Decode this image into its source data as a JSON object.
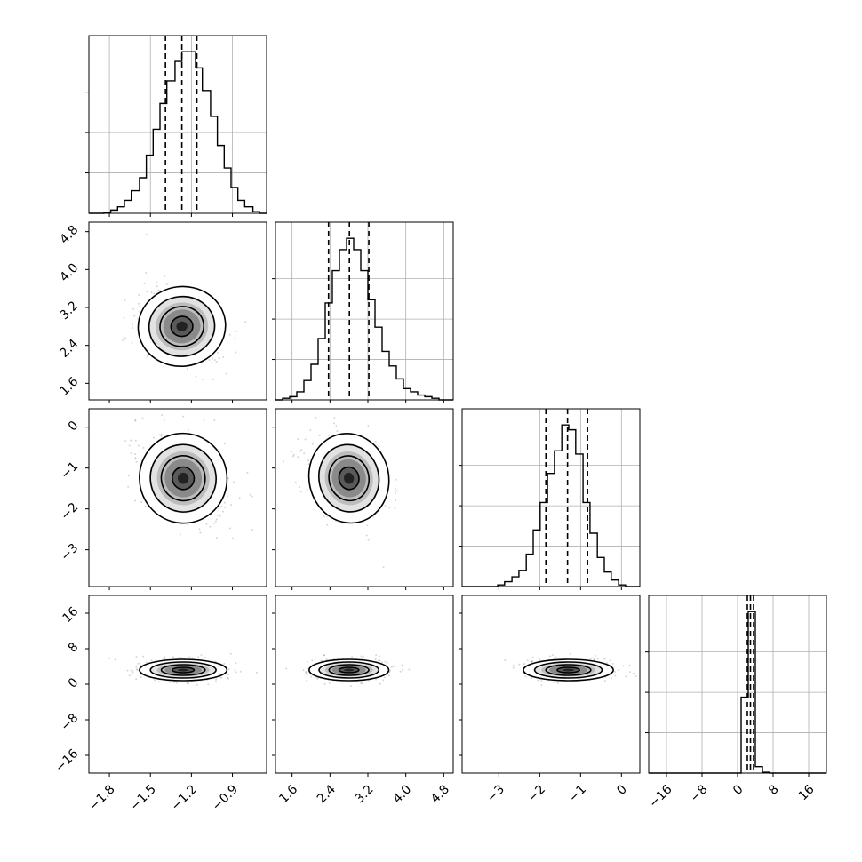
{
  "chart_data": {
    "type": "corner",
    "parameters": [
      "",
      "",
      "",
      ""
    ],
    "colors": {
      "samples": "#000000",
      "grid": "#b0b0b0",
      "frame": "#000000",
      "background": "#ffffff"
    },
    "grid": true,
    "axes": [
      {
        "range": [
          -1.95,
          -0.65
        ],
        "ticks": [
          -1.8,
          -1.5,
          -1.2,
          -0.9
        ],
        "tick_labels": [
          "−1.8",
          "−1.5",
          "−1.2",
          "−0.9"
        ]
      },
      {
        "range": [
          1.25,
          5.0
        ],
        "ticks": [
          1.6,
          2.4,
          3.2,
          4.0,
          4.8
        ],
        "tick_labels": [
          "1.6",
          "2.4",
          "3.2",
          "4.0",
          "4.8"
        ]
      },
      {
        "range": [
          -3.9,
          0.45
        ],
        "ticks": [
          -3,
          -2,
          -1,
          0
        ],
        "tick_labels": [
          "−3",
          "−2",
          "−1",
          "0"
        ]
      },
      {
        "range": [
          -20,
          20
        ],
        "ticks": [
          -16,
          -8,
          0,
          8,
          16
        ],
        "tick_labels": [
          "−16",
          "−8",
          "0",
          "8",
          "16"
        ]
      }
    ],
    "diagonal": [
      {
        "bins": [
          [
            -1.95,
            -1.89
          ],
          [
            -1.89,
            -1.84
          ],
          [
            -1.84,
            -1.79
          ],
          [
            -1.79,
            -1.74
          ],
          [
            -1.74,
            -1.69
          ],
          [
            -1.69,
            -1.64
          ],
          [
            -1.64,
            -1.58
          ],
          [
            -1.58,
            -1.53
          ],
          [
            -1.53,
            -1.48
          ],
          [
            -1.48,
            -1.43
          ],
          [
            -1.43,
            -1.38
          ],
          [
            -1.38,
            -1.32
          ],
          [
            -1.32,
            -1.27
          ],
          [
            -1.27,
            -1.22
          ],
          [
            -1.22,
            -1.17
          ],
          [
            -1.17,
            -1.12
          ],
          [
            -1.12,
            -1.06
          ],
          [
            -1.06,
            -1.01
          ],
          [
            -1.01,
            -0.96
          ],
          [
            -0.96,
            -0.91
          ],
          [
            -0.91,
            -0.86
          ],
          [
            -0.86,
            -0.81
          ],
          [
            -0.81,
            -0.75
          ],
          [
            -0.75,
            -0.7
          ],
          [
            -0.7,
            -0.65
          ]
        ],
        "counts": [
          0,
          0,
          0.5,
          2,
          4,
          8,
          14,
          22,
          36,
          52,
          68,
          82,
          94,
          100,
          100,
          90,
          76,
          60,
          42,
          28,
          16,
          8,
          4,
          1,
          0
        ],
        "quantiles": [
          -1.39,
          -1.27,
          -1.16
        ]
      },
      {
        "bins": [
          [
            1.25,
            1.4
          ],
          [
            1.4,
            1.55
          ],
          [
            1.55,
            1.7
          ],
          [
            1.7,
            1.85
          ],
          [
            1.85,
            2.0
          ],
          [
            2.0,
            2.15
          ],
          [
            2.15,
            2.3
          ],
          [
            2.3,
            2.45
          ],
          [
            2.45,
            2.6
          ],
          [
            2.6,
            2.75
          ],
          [
            2.75,
            2.9
          ],
          [
            2.9,
            3.05
          ],
          [
            3.05,
            3.2
          ],
          [
            3.2,
            3.35
          ],
          [
            3.35,
            3.5
          ],
          [
            3.5,
            3.65
          ],
          [
            3.65,
            3.8
          ],
          [
            3.8,
            3.95
          ],
          [
            3.95,
            4.1
          ],
          [
            4.1,
            4.25
          ],
          [
            4.25,
            4.4
          ],
          [
            4.4,
            4.55
          ],
          [
            4.55,
            4.7
          ],
          [
            4.7,
            4.85
          ],
          [
            4.85,
            5.0
          ]
        ],
        "counts": [
          0,
          1,
          2,
          5,
          12,
          22,
          38,
          60,
          80,
          93,
          100,
          93,
          80,
          62,
          45,
          30,
          21,
          13,
          7,
          5,
          3,
          2,
          1,
          0,
          0
        ],
        "quantiles": [
          2.37,
          2.81,
          3.22
        ]
      },
      {
        "bins": [
          [
            -3.9,
            -3.73
          ],
          [
            -3.73,
            -3.55
          ],
          [
            -3.55,
            -3.38
          ],
          [
            -3.38,
            -3.2
          ],
          [
            -3.2,
            -3.03
          ],
          [
            -3.03,
            -2.86
          ],
          [
            -2.86,
            -2.68
          ],
          [
            -2.68,
            -2.51
          ],
          [
            -2.51,
            -2.33
          ],
          [
            -2.33,
            -2.16
          ],
          [
            -2.16,
            -1.99
          ],
          [
            -1.99,
            -1.81
          ],
          [
            -1.81,
            -1.64
          ],
          [
            -1.64,
            -1.46
          ],
          [
            -1.46,
            -1.29
          ],
          [
            -1.29,
            -1.12
          ],
          [
            -1.12,
            -0.94
          ],
          [
            -0.94,
            -0.77
          ],
          [
            -0.77,
            -0.59
          ],
          [
            -0.59,
            -0.42
          ],
          [
            -0.42,
            -0.25
          ],
          [
            -0.25,
            -0.07
          ],
          [
            -0.07,
            0.1
          ],
          [
            0.1,
            0.28
          ],
          [
            0.28,
            0.45
          ]
        ],
        "counts": [
          0,
          0,
          0,
          0,
          0,
          1,
          3,
          6,
          10,
          20,
          35,
          52,
          70,
          84,
          100,
          97,
          82,
          52,
          33,
          18,
          9,
          4,
          1,
          0,
          0
        ],
        "quantiles": [
          -1.85,
          -1.32,
          -0.83
        ]
      },
      {
        "bins": [
          [
            -20,
            -18.4
          ],
          [
            -18.4,
            -16.8
          ],
          [
            -16.8,
            -15.2
          ],
          [
            -15.2,
            -13.6
          ],
          [
            -13.6,
            -12
          ],
          [
            -12,
            -10.4
          ],
          [
            -10.4,
            -8.8
          ],
          [
            -8.8,
            -7.2
          ],
          [
            -7.2,
            -5.6
          ],
          [
            -5.6,
            -4
          ],
          [
            -4,
            -2.4
          ],
          [
            -2.4,
            -0.8
          ],
          [
            -0.8,
            0.8
          ],
          [
            0.8,
            2.4
          ],
          [
            2.4,
            4
          ],
          [
            4,
            5.6
          ],
          [
            5.6,
            7.2
          ],
          [
            7.2,
            8.8
          ],
          [
            8.8,
            10.4
          ],
          [
            10.4,
            12
          ],
          [
            12,
            13.6
          ],
          [
            13.6,
            15.2
          ],
          [
            15.2,
            16.8
          ],
          [
            16.8,
            18.4
          ],
          [
            18.4,
            20
          ]
        ],
        "counts": [
          0,
          0,
          0,
          0,
          0,
          0,
          0,
          0,
          0,
          0,
          0,
          0,
          0,
          47,
          100,
          4,
          0.5,
          0,
          0,
          0,
          0,
          0,
          0,
          0,
          0
        ],
        "quantiles": [
          2.2,
          2.9,
          3.6
        ]
      }
    ],
    "pairs": [
      {
        "x": 0,
        "y": 1,
        "mean": [
          -1.27,
          2.8
        ],
        "sd": [
          0.16,
          0.42
        ],
        "corr": -0.18
      },
      {
        "x": 0,
        "y": 2,
        "mean": [
          -1.26,
          -1.25
        ],
        "sd": [
          0.16,
          0.55
        ],
        "corr": -0.3
      },
      {
        "x": 1,
        "y": 2,
        "mean": [
          2.8,
          -1.25
        ],
        "sd": [
          0.42,
          0.55
        ],
        "corr": -0.3
      },
      {
        "x": 0,
        "y": 3,
        "mean": [
          -1.26,
          3.2
        ],
        "sd": [
          0.16,
          1.2
        ],
        "corr": 0
      },
      {
        "x": 1,
        "y": 3,
        "mean": [
          2.8,
          3.2
        ],
        "sd": [
          0.42,
          1.2
        ],
        "corr": 0
      },
      {
        "x": 2,
        "y": 3,
        "mean": [
          -1.3,
          3.2
        ],
        "sd": [
          0.55,
          1.2
        ],
        "corr": 0
      }
    ]
  }
}
